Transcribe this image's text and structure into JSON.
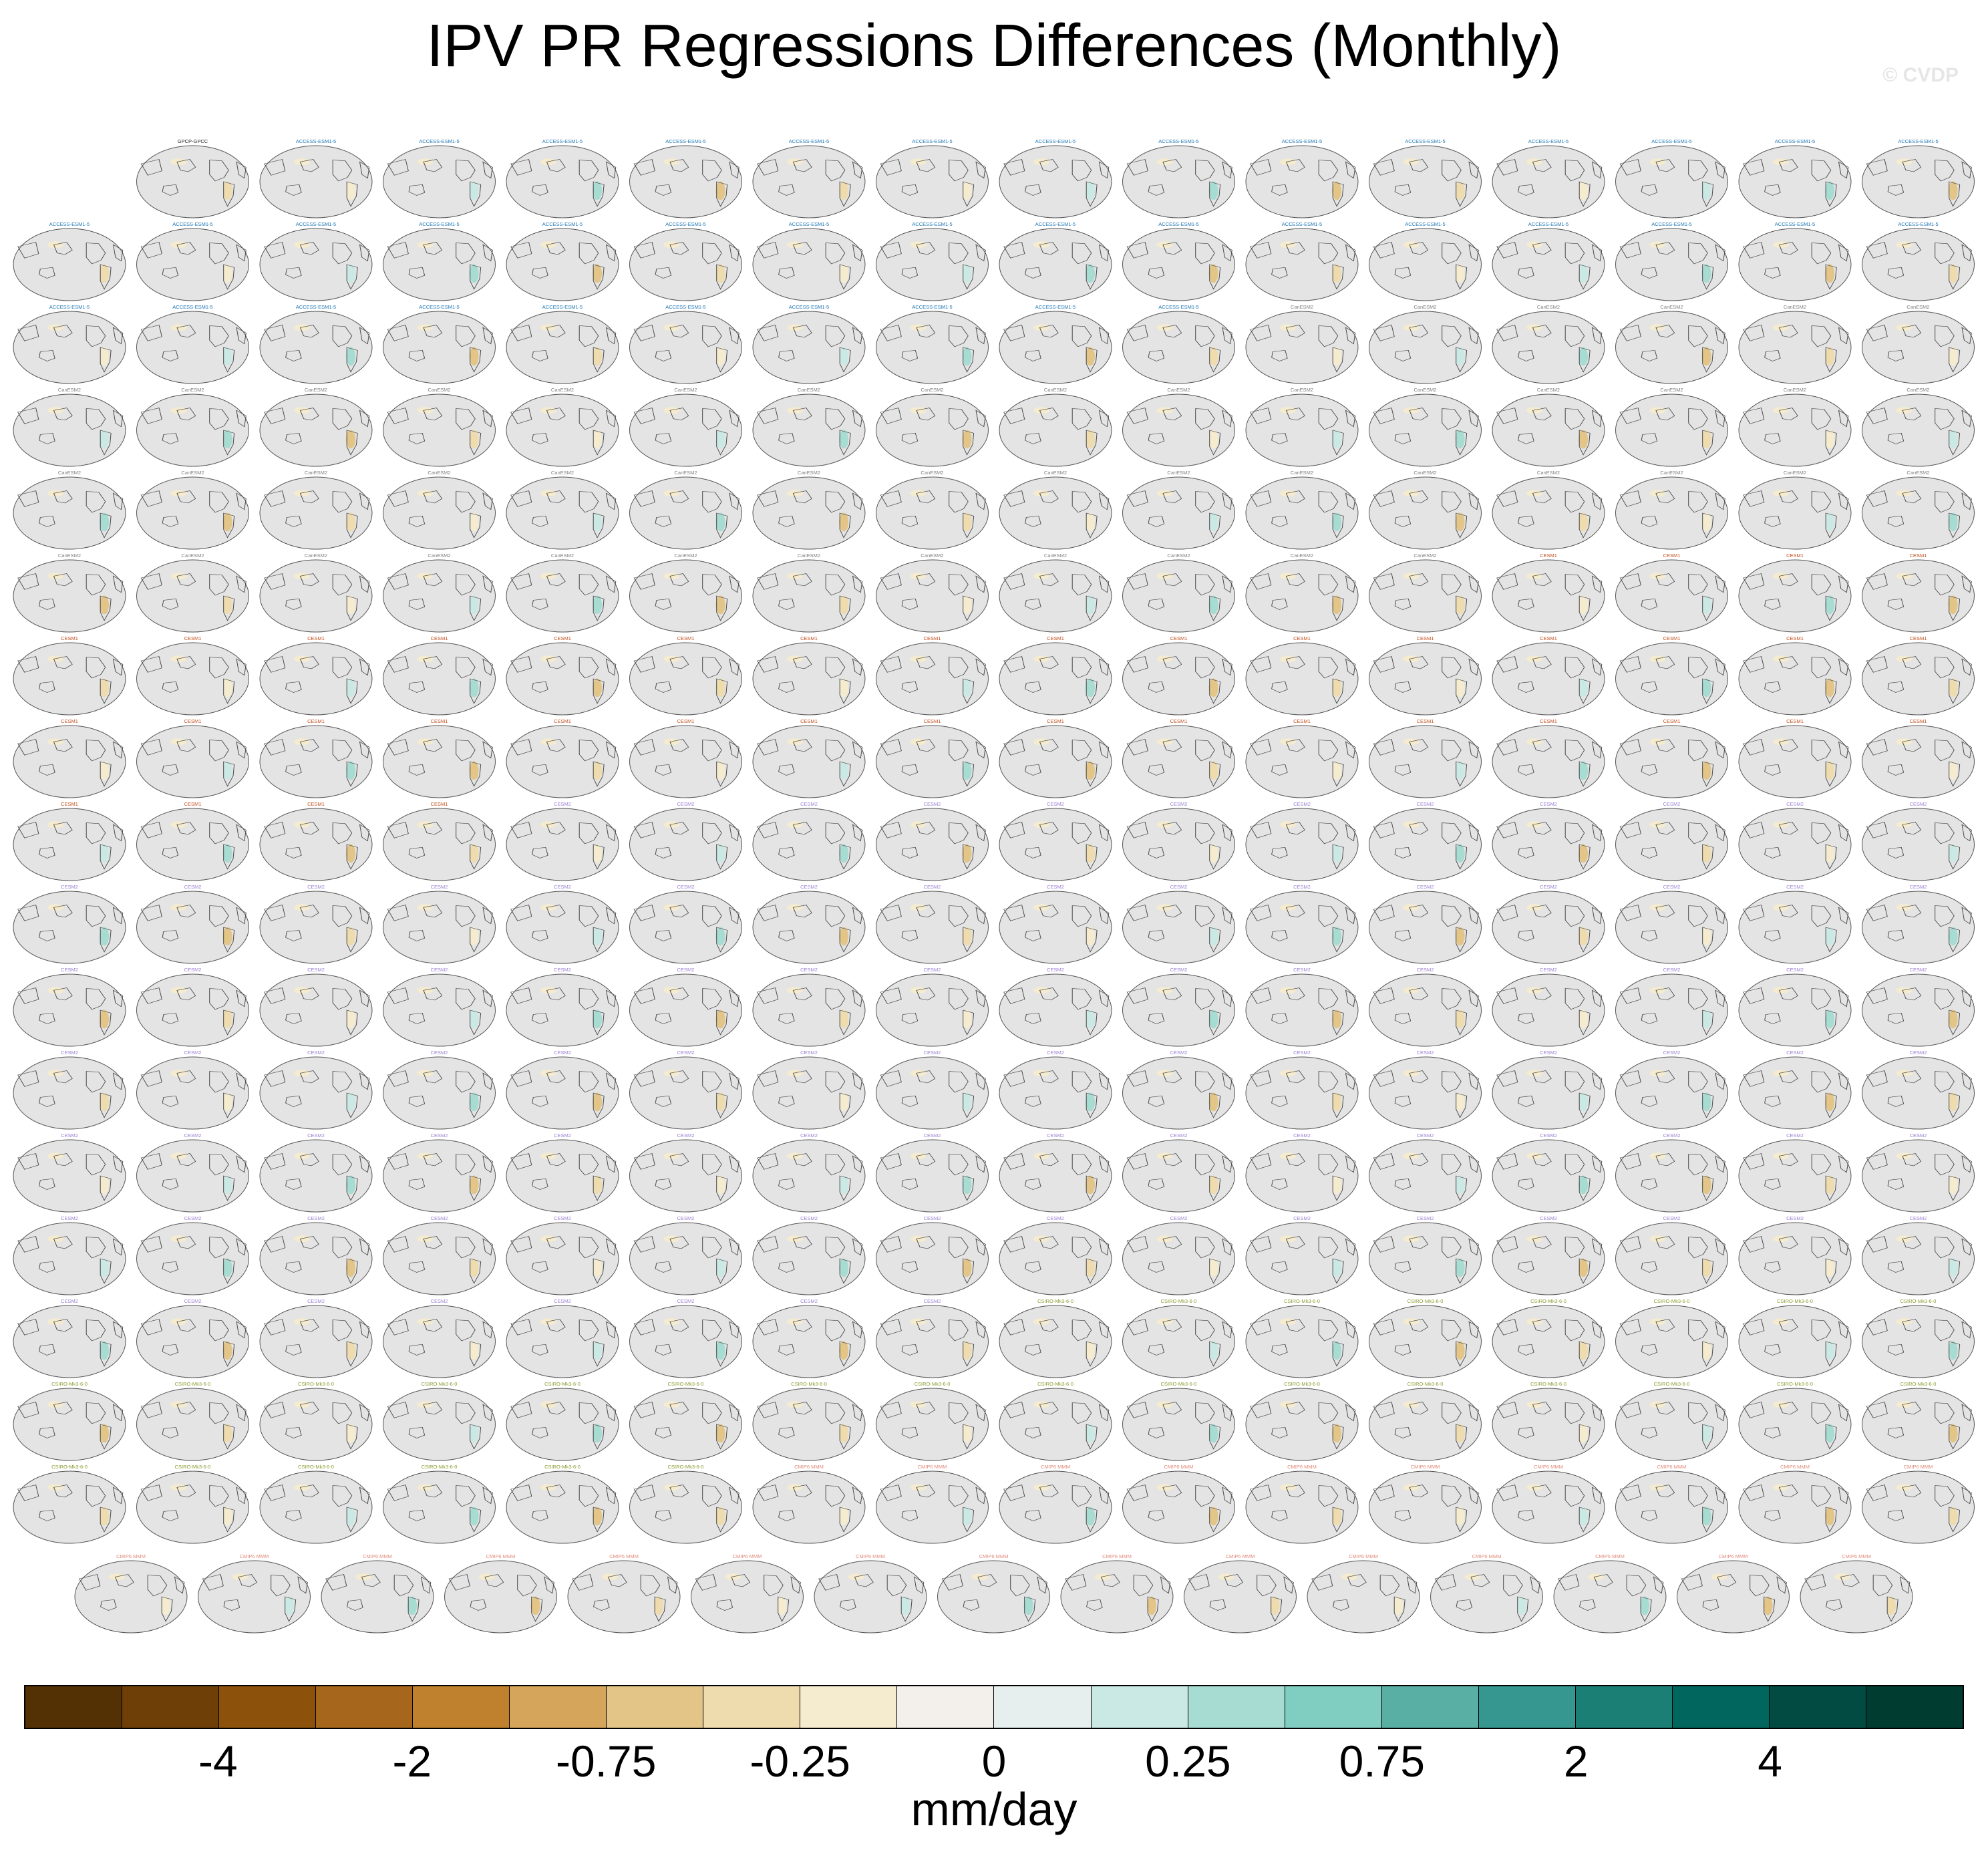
{
  "title": "IPV PR Regressions Differences (Monthly)",
  "watermark": "© CVDP",
  "chart_data": {
    "type": "heatmap",
    "title": "IPV PR Regressions Differences (Monthly)",
    "panel_count": 289,
    "panel_groups": [
      {
        "label": "GPCP-GPCC",
        "count": 1,
        "color": "#222222"
      },
      {
        "label": "ACCESS-ESM1-5",
        "count": 40,
        "color": "#1f77b4"
      },
      {
        "label": "CanESM2",
        "count": 50,
        "color": "#7f7f7f"
      },
      {
        "label": "CESM1",
        "count": 40,
        "color": "#c05020"
      },
      {
        "label": "CESM2",
        "count": 100,
        "color": "#9b7fd0"
      },
      {
        "label": "CSIRO-Mk3-6-0",
        "count": 30,
        "color": "#8c9a30"
      },
      {
        "label": "CMIP6 MMM",
        "count": 28,
        "color": "#e08a7a"
      }
    ],
    "colorbar": {
      "units": "mm/day",
      "tick_labels": [
        "-4",
        "-2",
        "-0.75",
        "-0.25",
        "0",
        "0.25",
        "0.75",
        "2",
        "4"
      ],
      "colors": [
        "#543005",
        "#6f3f08",
        "#8c510a",
        "#a6661b",
        "#bf812d",
        "#d4a55b",
        "#e3c588",
        "#efdcae",
        "#f5ebcf",
        "#f3efea",
        "#e6efee",
        "#cbe9e4",
        "#a7dcd3",
        "#80cdc1",
        "#5aafa4",
        "#35978f",
        "#1c7f76",
        "#01665e",
        "#024b43",
        "#003c30"
      ]
    }
  }
}
